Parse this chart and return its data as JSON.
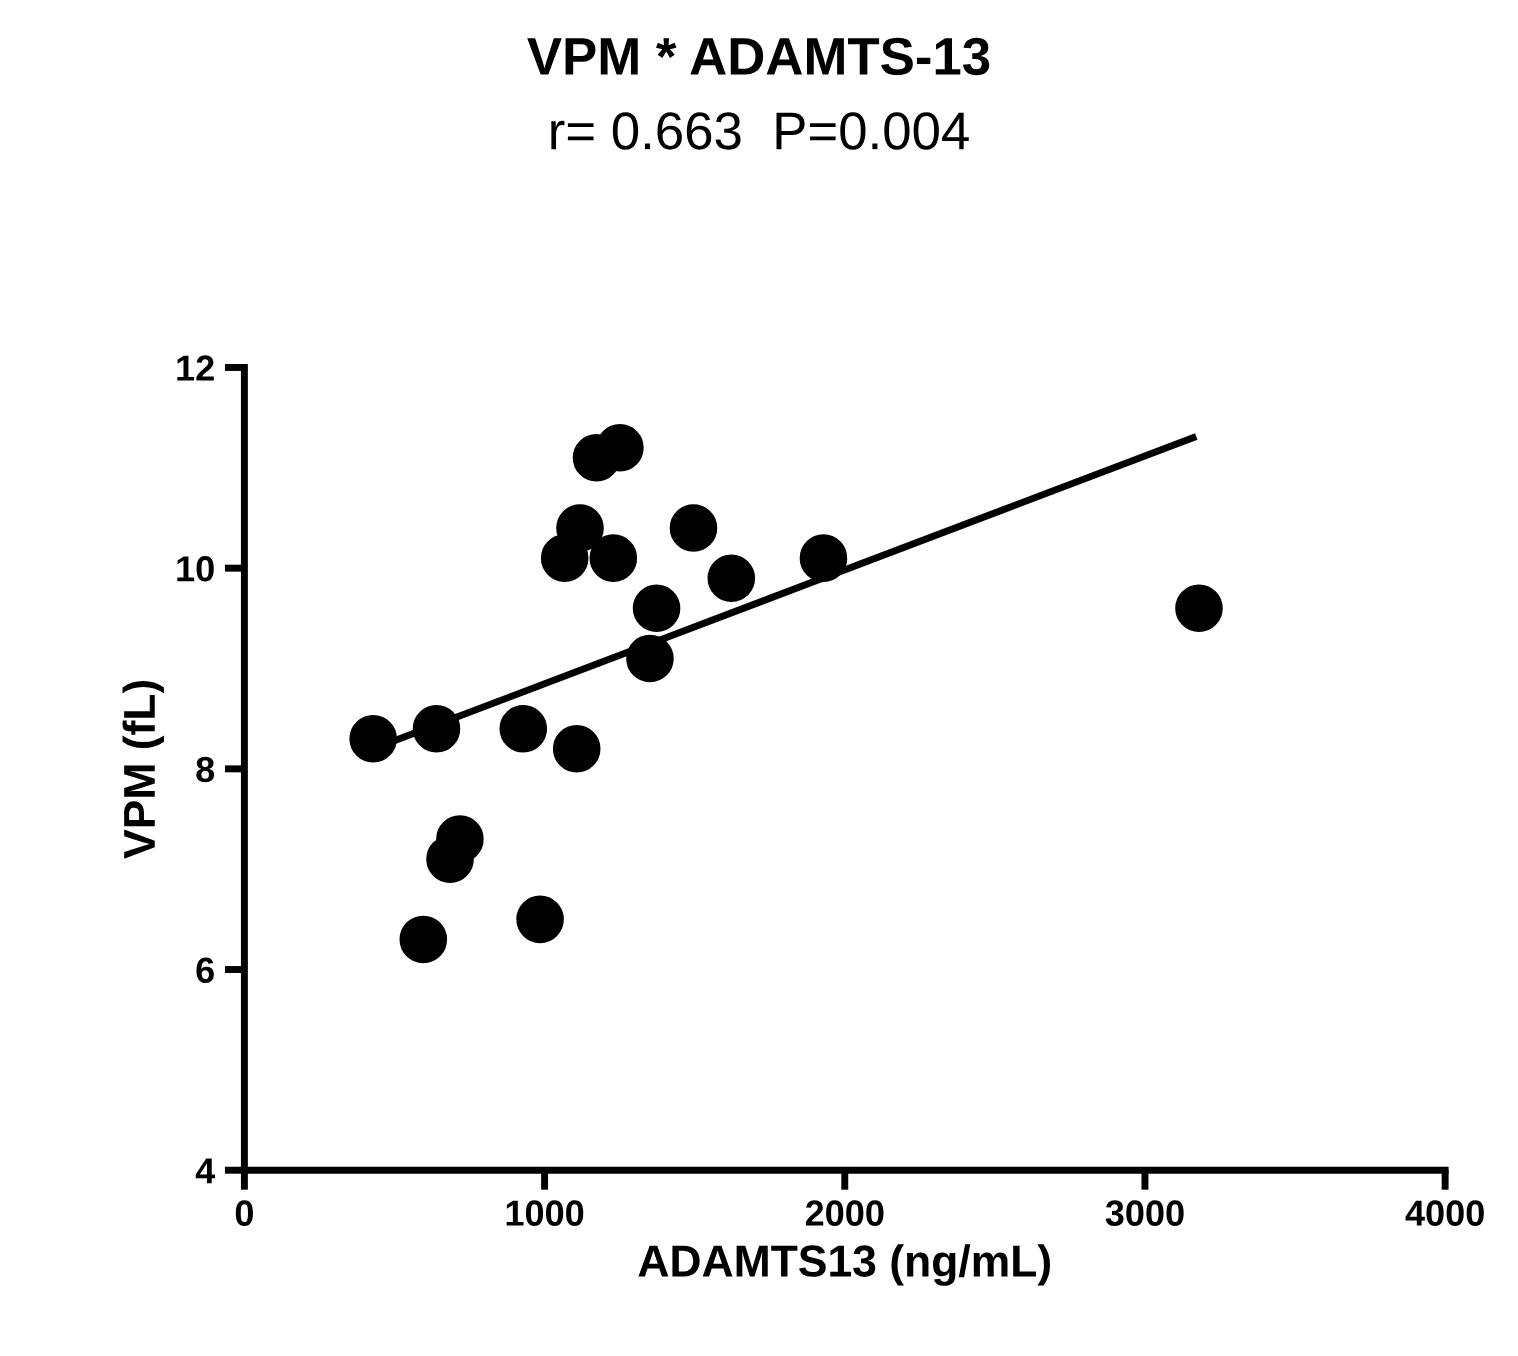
{
  "chart_data": {
    "type": "scatter",
    "title": "VPM * ADAMTS-13",
    "subtitle": "r= 0.663  P=0.004",
    "xlabel": "ADAMTS13 (ng/mL)",
    "ylabel": "VPM (fL)",
    "xlim": [
      0,
      4000
    ],
    "xticks": [
      0,
      1000,
      2000,
      3000,
      4000
    ],
    "ylim": [
      4,
      12
    ],
    "yticks": [
      4,
      6,
      8,
      10,
      12
    ],
    "grid": false,
    "legend": false,
    "marker": "circle",
    "series": [
      {
        "color": "#000000",
        "x": [
          429,
          640,
          929,
          1107,
          596,
          985,
          718,
          685,
          1067,
          1118,
          1229,
          1173,
          1251,
          1496,
          1373,
          1351,
          1622,
          1929,
          3180
        ],
        "values": [
          8.3,
          8.4,
          8.4,
          8.2,
          6.3,
          6.5,
          7.3,
          7.1,
          10.1,
          10.4,
          10.1,
          11.1,
          11.2,
          10.4,
          9.6,
          9.1,
          9.9,
          10.1,
          9.6
        ]
      },
      {
        "type": "line",
        "color": "#000000",
        "marker": "none",
        "line_style": "solid",
        "x": [
          429,
          3160
        ],
        "values": [
          8.2,
          11.3
        ]
      }
    ]
  }
}
